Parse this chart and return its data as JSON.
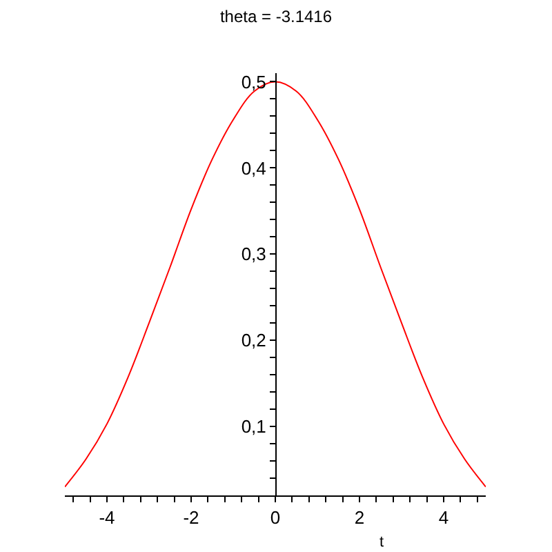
{
  "chart_data": {
    "type": "line",
    "title": "theta = -3.1416",
    "xlabel": "t",
    "x": [
      -5,
      -4.5,
      -4,
      -3.5,
      -3,
      -2.5,
      -2,
      -1.5,
      -1,
      -0.5,
      0,
      0.5,
      1,
      1.5,
      2,
      2.5,
      3,
      3.5,
      4,
      4.5,
      5
    ],
    "series": [
      {
        "color": "#ff0000",
        "values": [
          0.03,
          0.062,
          0.103,
          0.157,
          0.22,
          0.285,
          0.352,
          0.41,
          0.456,
          0.489,
          0.5,
          0.489,
          0.456,
          0.41,
          0.352,
          0.285,
          0.22,
          0.157,
          0.103,
          0.062,
          0.03
        ]
      }
    ],
    "xlim": [
      -5,
      5
    ],
    "ylim": [
      0.02,
      0.51
    ],
    "xticks": [
      {
        "value": -4.8,
        "label": null
      },
      {
        "value": -4.4,
        "label": null
      },
      -4,
      {
        "value": -3.6,
        "label": null
      },
      {
        "value": -3.2,
        "label": null
      },
      {
        "value": -2.8,
        "label": null
      },
      {
        "value": -2.4,
        "label": null
      },
      -2,
      {
        "value": -1.6,
        "label": null
      },
      {
        "value": -1.2,
        "label": null
      },
      {
        "value": -0.8,
        "label": null
      },
      {
        "value": -0.4,
        "label": null
      },
      0,
      {
        "value": 0.4,
        "label": null
      },
      {
        "value": 0.8,
        "label": null
      },
      {
        "value": 1.2,
        "label": null
      },
      {
        "value": 1.6,
        "label": null
      },
      2,
      {
        "value": 2.4,
        "label": null
      },
      {
        "value": 2.8,
        "label": null
      },
      {
        "value": 3.2,
        "label": null
      },
      {
        "value": 3.6,
        "label": null
      },
      4,
      {
        "value": 4.4,
        "label": null
      },
      {
        "value": 4.8,
        "label": null
      }
    ],
    "yticks": [
      {
        "value": 0.04,
        "label": null
      },
      {
        "value": 0.06,
        "label": null
      },
      {
        "value": 0.08,
        "label": null
      },
      {
        "value": 0.1,
        "label": "0,1"
      },
      {
        "value": 0.12,
        "label": null
      },
      {
        "value": 0.14,
        "label": null
      },
      {
        "value": 0.16,
        "label": null
      },
      {
        "value": 0.18,
        "label": null
      },
      {
        "value": 0.2,
        "label": "0,2"
      },
      {
        "value": 0.22,
        "label": null
      },
      {
        "value": 0.24,
        "label": null
      },
      {
        "value": 0.26,
        "label": null
      },
      {
        "value": 0.28,
        "label": null
      },
      {
        "value": 0.3,
        "label": "0,3"
      },
      {
        "value": 0.32,
        "label": null
      },
      {
        "value": 0.34,
        "label": null
      },
      {
        "value": 0.36,
        "label": null
      },
      {
        "value": 0.38,
        "label": null
      },
      {
        "value": 0.4,
        "label": "0,4"
      },
      {
        "value": 0.42,
        "label": null
      },
      {
        "value": 0.44,
        "label": null
      },
      {
        "value": 0.46,
        "label": null
      },
      {
        "value": 0.48,
        "label": null
      },
      {
        "value": 0.5,
        "label": "0,5"
      }
    ],
    "marker": "none",
    "line_style": "solid"
  }
}
